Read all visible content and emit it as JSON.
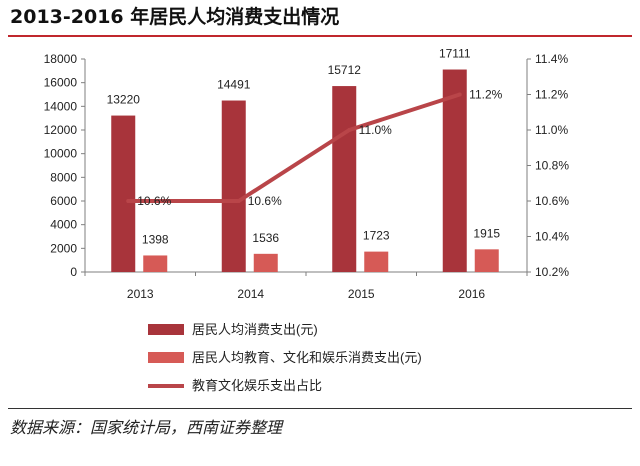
{
  "page": {
    "title": "2013-2016 年居民人均消费支出情况",
    "source": "数据来源：国家统计局，西南证券整理"
  },
  "colors": {
    "consumption_bar": "#a8343b",
    "education_bar": "#d65a56",
    "ratio_line": "#b94549",
    "axis": "#7f7f7f",
    "text": "#222222"
  },
  "chart_data": {
    "type": "bar",
    "categories": [
      "2013",
      "2014",
      "2015",
      "2016"
    ],
    "series": [
      {
        "name": "居民人均消费支出(元)",
        "type": "bar",
        "axis": "left",
        "values": [
          13220,
          14491,
          15712,
          17111
        ],
        "labels": [
          "13220",
          "14491",
          "15712",
          "17111"
        ]
      },
      {
        "name": "居民人均教育、文化和娱乐消费支出(元)",
        "type": "bar",
        "axis": "left",
        "values": [
          1398,
          1536,
          1723,
          1915
        ],
        "labels": [
          "1398",
          "1536",
          "1723",
          "1915"
        ]
      },
      {
        "name": "教育文化娱乐支出占比",
        "type": "line",
        "axis": "right",
        "values": [
          10.6,
          10.6,
          11.0,
          11.2
        ],
        "labels": [
          "10.6%",
          "10.6%",
          "11.0%",
          "11.2%"
        ]
      }
    ],
    "y_left": {
      "min": 0,
      "max": 18000,
      "ticks": [
        "0",
        "2000",
        "4000",
        "6000",
        "8000",
        "10000",
        "12000",
        "14000",
        "16000",
        "18000"
      ]
    },
    "y_right": {
      "min": 10.2,
      "max": 11.4,
      "ticks": [
        "10.2%",
        "10.4%",
        "10.6%",
        "10.8%",
        "11.0%",
        "11.2%",
        "11.4%"
      ]
    },
    "grid": false,
    "legend_position": "bottom-left"
  }
}
